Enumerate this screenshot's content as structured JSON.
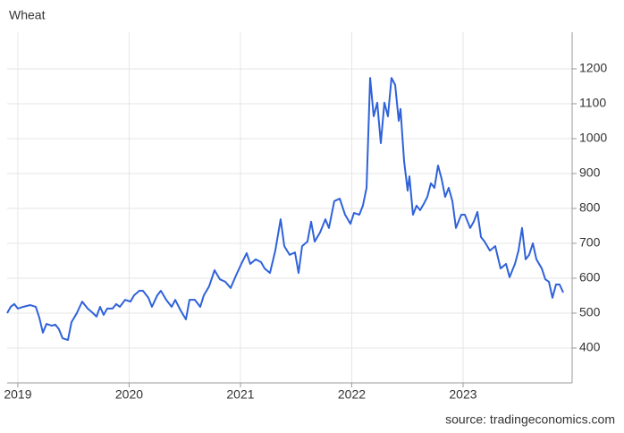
{
  "chart_data": {
    "type": "line",
    "title": "Wheat",
    "source": "source: tradingeconomics.com",
    "xlim": [
      2018.904,
      2023.98
    ],
    "xticks": [
      2019,
      2020,
      2021,
      2022,
      2023
    ],
    "ylim": [
      300,
      1305
    ],
    "yticks": [
      400,
      500,
      600,
      700,
      800,
      900,
      1000,
      1100,
      1200
    ],
    "grid": true,
    "series": [
      {
        "name": "Wheat",
        "color": "#2f62d9",
        "x": [
          2018.904,
          2018.936,
          2018.968,
          2019.0,
          2019.048,
          2019.112,
          2019.161,
          2019.193,
          2019.225,
          2019.257,
          2019.305,
          2019.337,
          2019.369,
          2019.402,
          2019.45,
          2019.482,
          2019.53,
          2019.578,
          2019.627,
          2019.675,
          2019.707,
          2019.739,
          2019.771,
          2019.803,
          2019.851,
          2019.884,
          2019.916,
          2019.964,
          2020.012,
          2020.044,
          2020.092,
          2020.124,
          2020.173,
          2020.205,
          2020.253,
          2020.285,
          2020.333,
          2020.382,
          2020.414,
          2020.462,
          2020.51,
          2020.542,
          2020.59,
          2020.639,
          2020.671,
          2020.719,
          2020.767,
          2020.815,
          2020.863,
          2020.912,
          2020.96,
          2021.008,
          2021.056,
          2021.088,
          2021.137,
          2021.185,
          2021.217,
          2021.265,
          2021.313,
          2021.361,
          2021.394,
          2021.442,
          2021.49,
          2021.522,
          2021.554,
          2021.602,
          2021.635,
          2021.667,
          2021.715,
          2021.763,
          2021.795,
          2021.843,
          2021.892,
          2021.94,
          2021.988,
          2022.02,
          2022.068,
          2022.1,
          2022.133,
          2022.165,
          2022.197,
          2022.229,
          2022.261,
          2022.293,
          2022.325,
          2022.357,
          2022.39,
          2022.422,
          2022.438,
          2022.47,
          2022.502,
          2022.518,
          2022.55,
          2022.582,
          2022.614,
          2022.647,
          2022.679,
          2022.711,
          2022.743,
          2022.775,
          2022.807,
          2022.839,
          2022.871,
          2022.904,
          2022.936,
          2022.984,
          2023.016,
          2023.064,
          2023.096,
          2023.129,
          2023.161,
          2023.193,
          2023.241,
          2023.289,
          2023.337,
          2023.386,
          2023.418,
          2023.466,
          2023.498,
          2023.53,
          2023.562,
          2023.594,
          2023.627,
          2023.659,
          2023.707,
          2023.739,
          2023.771,
          2023.803,
          2023.835,
          2023.867,
          2023.9
        ],
        "values": [
          500,
          518,
          526,
          513,
          518,
          523,
          518,
          487,
          444,
          469,
          464,
          467,
          454,
          428,
          423,
          474,
          500,
          533,
          513,
          500,
          490,
          518,
          495,
          513,
          513,
          526,
          518,
          538,
          533,
          551,
          564,
          564,
          544,
          518,
          551,
          564,
          538,
          518,
          538,
          508,
          482,
          538,
          538,
          518,
          551,
          577,
          623,
          597,
          590,
          572,
          608,
          641,
          672,
          641,
          654,
          646,
          628,
          615,
          679,
          769,
          692,
          667,
          674,
          615,
          692,
          705,
          762,
          705,
          731,
          769,
          744,
          821,
          828,
          782,
          756,
          787,
          782,
          808,
          859,
          1174,
          1064,
          1103,
          987,
          1103,
          1064,
          1174,
          1154,
          1051,
          1085,
          936,
          851,
          892,
          782,
          808,
          795,
          813,
          833,
          872,
          859,
          923,
          885,
          833,
          859,
          821,
          744,
          782,
          782,
          744,
          762,
          790,
          718,
          705,
          679,
          692,
          628,
          641,
          603,
          641,
          679,
          744,
          654,
          667,
          700,
          654,
          628,
          597,
          590,
          544,
          582,
          582,
          559
        ]
      }
    ]
  }
}
